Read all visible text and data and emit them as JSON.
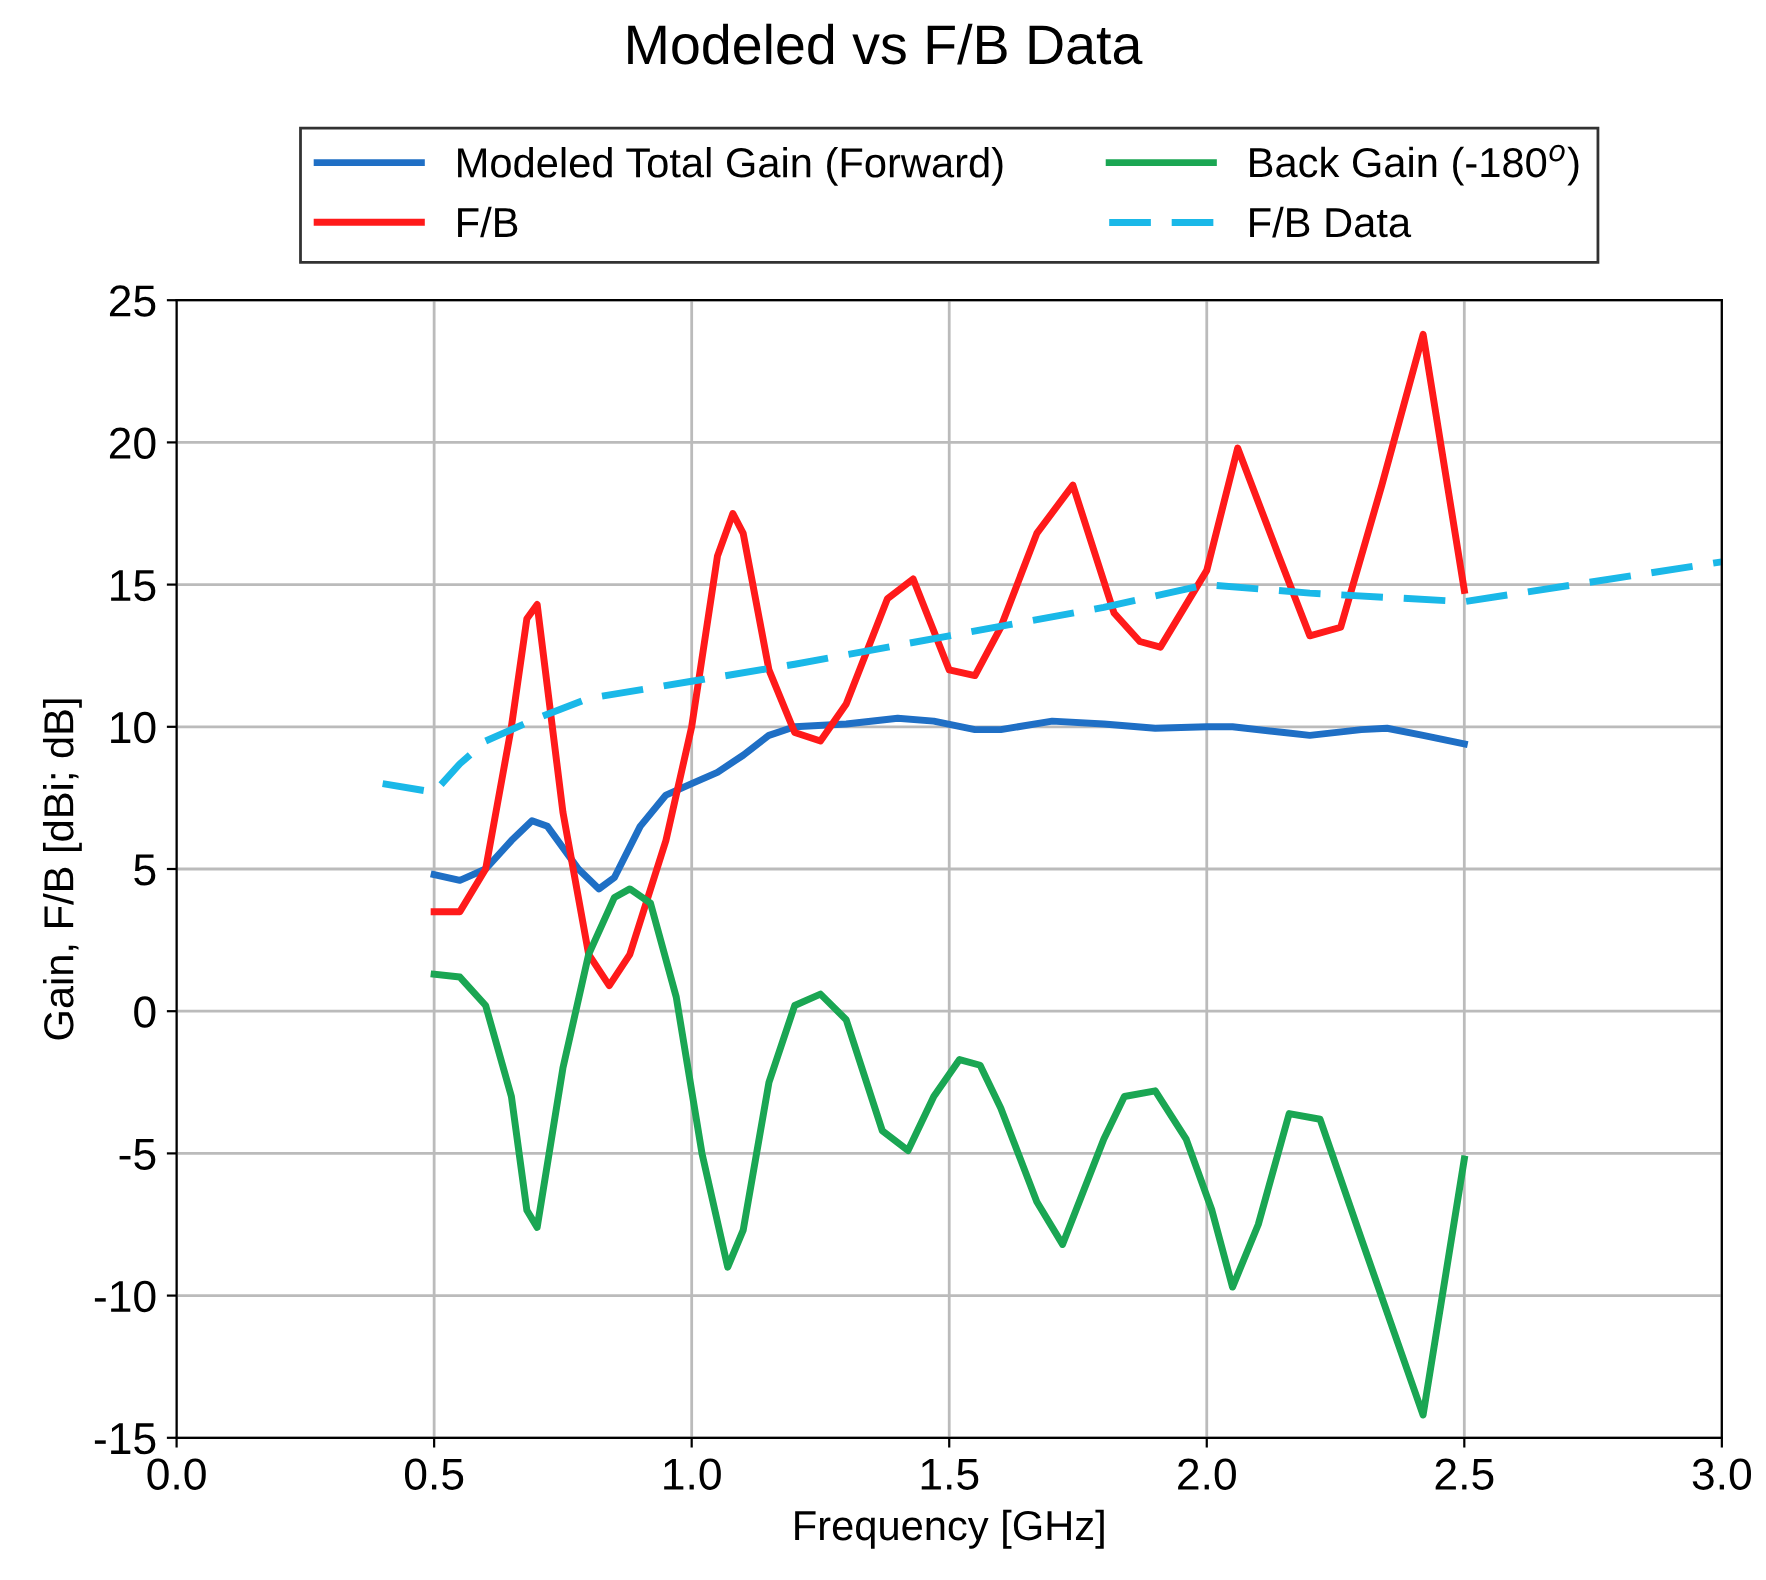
{
  "chart_data": {
    "type": "line",
    "title": "Modeled vs F/B Data",
    "xlabel": "Frequency [GHz]",
    "ylabel": "Gain, F/B [dBi; dB]",
    "xlim": [
      0,
      3
    ],
    "xticks": [
      {
        "value": 0,
        "label": "0.0"
      },
      {
        "value": 0.5,
        "label": "0.5"
      },
      {
        "value": 1,
        "label": "1.0"
      },
      {
        "value": 1.5,
        "label": "1.5"
      },
      {
        "value": 2,
        "label": "2.0"
      },
      {
        "value": 2.5,
        "label": "2.5"
      },
      {
        "value": 3,
        "label": "3.0"
      }
    ],
    "ylim": [
      -15,
      25
    ],
    "yticks": [
      -15,
      -10,
      -5,
      0,
      5,
      10,
      15,
      20,
      25
    ],
    "grid": true,
    "legend": "top",
    "marker": "none",
    "series": [
      {
        "name": "Modeled Total Gain (Forward)",
        "color": "#1f6fc5",
        "line_style": "solid",
        "x": [
          0.5,
          0.55,
          0.6,
          0.65,
          0.69,
          0.72,
          0.78,
          0.82,
          0.85,
          0.9,
          0.95,
          1.0,
          1.05,
          1.1,
          1.15,
          1.2,
          1.3,
          1.4,
          1.47,
          1.55,
          1.6,
          1.7,
          1.8,
          1.9,
          2.0,
          2.05,
          2.15,
          2.2,
          2.3,
          2.35,
          2.42,
          2.5
        ],
        "values": [
          4.8,
          4.6,
          5,
          6,
          6.7,
          6.5,
          5,
          4.3,
          4.7,
          6.5,
          7.6,
          8,
          8.4,
          9,
          9.7,
          10,
          10.1,
          10.3,
          10.2,
          9.9,
          9.9,
          10.2,
          10.1,
          9.95,
          10,
          10,
          9.8,
          9.7,
          9.9,
          9.95,
          9.7,
          9.4
        ]
      },
      {
        "name": "F/B",
        "color": "#ff1a1a",
        "line_style": "solid",
        "x": [
          0.5,
          0.55,
          0.6,
          0.65,
          0.68,
          0.7,
          0.75,
          0.8,
          0.84,
          0.88,
          0.95,
          1.0,
          1.05,
          1.08,
          1.1,
          1.15,
          1.2,
          1.25,
          1.3,
          1.38,
          1.43,
          1.5,
          1.55,
          1.6,
          1.67,
          1.74,
          1.82,
          1.87,
          1.91,
          2.0,
          2.06,
          2.14,
          2.2,
          2.26,
          2.34,
          2.42,
          2.5
        ],
        "values": [
          3.5,
          3.5,
          5,
          10,
          13.8,
          14.3,
          7,
          2,
          0.9,
          2,
          6,
          10,
          16,
          17.5,
          16.8,
          12,
          9.8,
          9.5,
          10.8,
          14.5,
          15.2,
          12,
          11.8,
          13.5,
          16.8,
          18.5,
          14,
          13,
          12.8,
          15.5,
          19.8,
          16,
          13.2,
          13.5,
          18.5,
          23.8,
          14.8
        ]
      },
      {
        "name": "Back Gain (-180$^{o}$)",
        "color": "#1aa653",
        "line_style": "solid",
        "x": [
          0.5,
          0.55,
          0.6,
          0.65,
          0.68,
          0.7,
          0.75,
          0.8,
          0.85,
          0.88,
          0.92,
          0.97,
          1.02,
          1.07,
          1.1,
          1.15,
          1.2,
          1.25,
          1.3,
          1.37,
          1.42,
          1.47,
          1.52,
          1.56,
          1.6,
          1.67,
          1.72,
          1.8,
          1.84,
          1.9,
          1.96,
          2.01,
          2.05,
          2.1,
          2.16,
          2.22,
          2.3,
          2.42,
          2.5
        ],
        "values": [
          1.3,
          1.2,
          0.2,
          -3,
          -7,
          -7.6,
          -2,
          2,
          4,
          4.3,
          3.8,
          0.5,
          -5,
          -9,
          -7.7,
          -2.5,
          0.2,
          0.6,
          -0.3,
          -4.2,
          -4.9,
          -3,
          -1.7,
          -1.9,
          -3.4,
          -6.7,
          -8.2,
          -4.5,
          -3,
          -2.8,
          -4.5,
          -7,
          -9.7,
          -7.5,
          -3.6,
          -3.8,
          -8,
          -14.2,
          -5.2
        ]
      },
      {
        "name": "F/B Data",
        "color": "#1ab8e8",
        "line_style": "dashed",
        "x": [
          0.4,
          0.5,
          0.55,
          0.6,
          0.7,
          0.8,
          1.0,
          1.2,
          1.5,
          1.8,
          2.0,
          2.2,
          2.5,
          3.0
        ],
        "values": [
          8,
          7.7,
          8.7,
          9.5,
          10.3,
          11,
          11.6,
          12.2,
          13.2,
          14.2,
          15,
          14.7,
          14.4,
          15.8
        ]
      }
    ]
  }
}
